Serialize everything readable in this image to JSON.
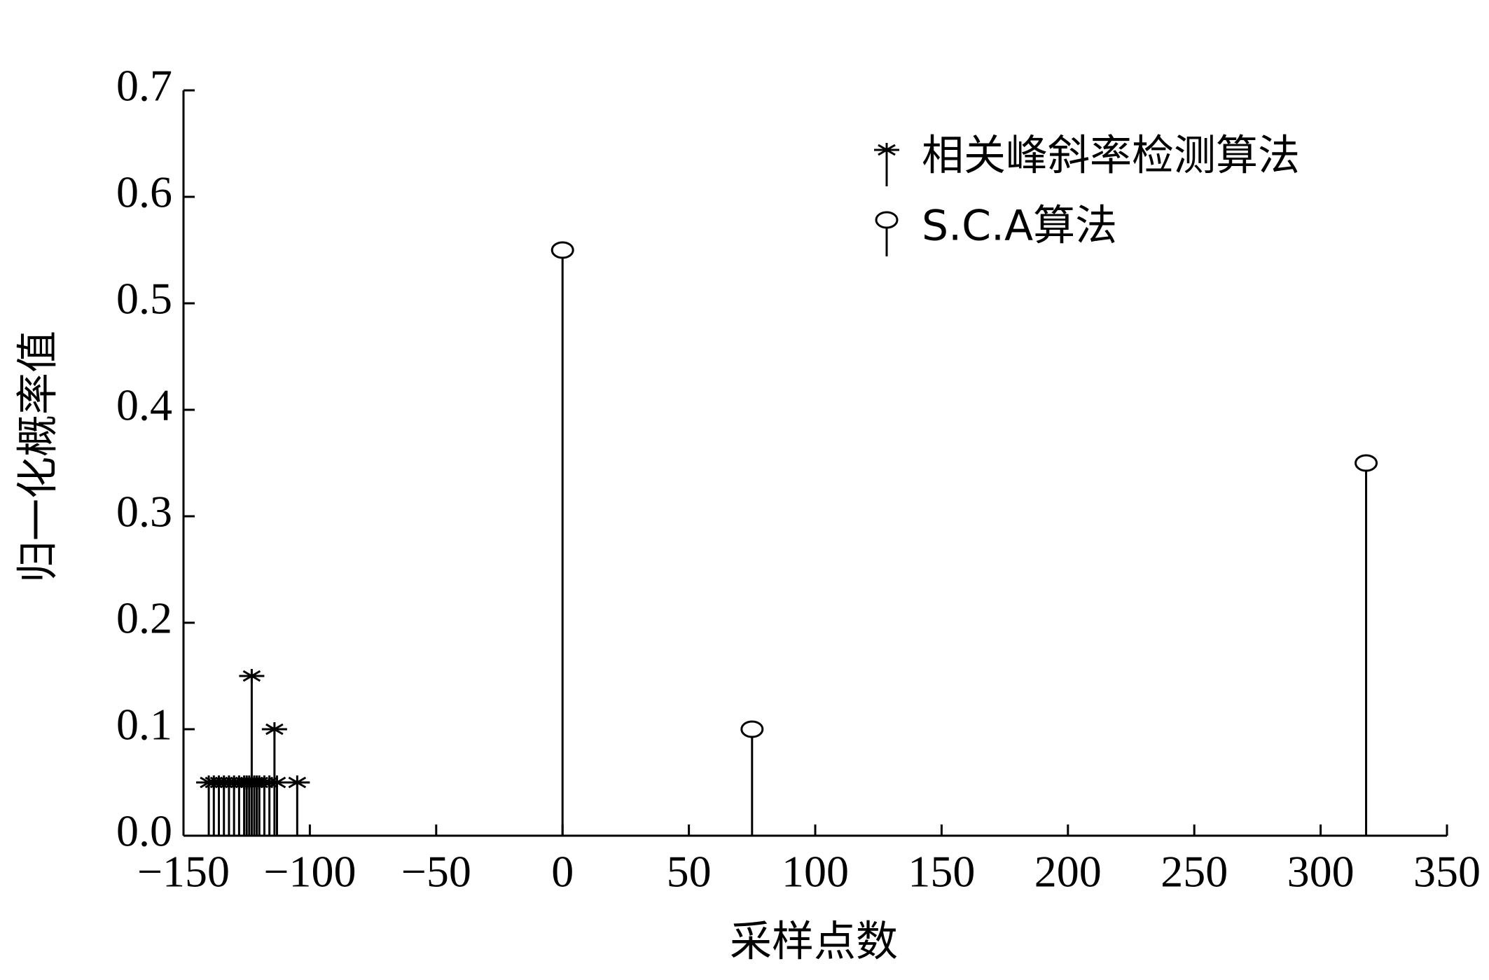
{
  "chart_data": {
    "type": "stem",
    "x_label": "采样点数",
    "y_label": "归一化概率值",
    "series": [
      {
        "name": "相关峰斜率检测算法",
        "color": "#000000",
        "marker": "star",
        "x": [
          -140,
          -138,
          -136,
          -134,
          -132,
          -130,
          -128,
          -126,
          -125,
          -124,
          -123,
          -122,
          -121,
          -120,
          -118,
          -116,
          -114,
          -113,
          -105
        ],
        "values": [
          0.05,
          0.05,
          0.05,
          0.05,
          0.05,
          0.05,
          0.05,
          0.05,
          0.05,
          0.05,
          0.15,
          0.05,
          0.05,
          0.05,
          0.05,
          0.05,
          0.1,
          0.05,
          0.05
        ]
      },
      {
        "name": "S.C.A算法",
        "color": "#000000",
        "marker": "circle",
        "x": [
          0,
          75,
          318
        ],
        "values": [
          0.55,
          0.1,
          0.35
        ]
      }
    ],
    "xlim": [
      -150,
      350
    ],
    "xticks": [
      {
        "value": -150,
        "label": "−150"
      },
      {
        "value": -100,
        "label": "−100"
      },
      {
        "value": -50,
        "label": "−50"
      },
      0,
      50,
      100,
      150,
      200,
      250,
      300,
      350
    ],
    "ylim": [
      0,
      0.7
    ],
    "yticks": [
      {
        "value": 0,
        "label": "0.0"
      },
      0.1,
      0.2,
      0.3,
      0.4,
      0.5,
      0.6,
      0.7
    ],
    "grid": false,
    "legend": "upper right"
  }
}
